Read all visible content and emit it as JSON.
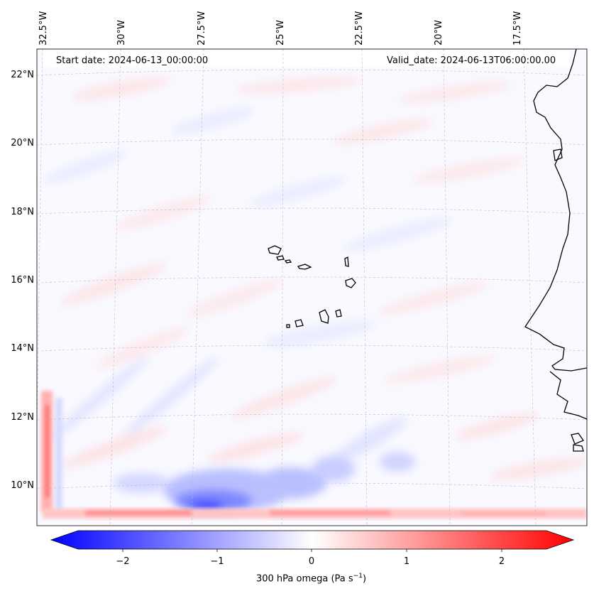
{
  "header": {
    "start_date": "Start date: 2024-06-13_00:00:00",
    "valid_date": "Valid_date: 2024-06-13T06:00:00.00"
  },
  "axes": {
    "lon_labels": [
      "32.5°W",
      "30°W",
      "27.5°W",
      "25°W",
      "22.5°W",
      "20°W",
      "17.5°W"
    ],
    "lat_labels": [
      "22°N",
      "20°N",
      "18°N",
      "16°N",
      "14°N",
      "12°N",
      "10°N"
    ]
  },
  "colorbar": {
    "ticks": [
      "−2",
      "−1",
      "0",
      "1",
      "2"
    ],
    "range": [
      -2.75,
      2.75
    ],
    "label_main": "300 hPa omega (Pa s",
    "label_exp": "−1",
    "label_end": ")",
    "colormap": "bwr",
    "min_color": "#0000ff",
    "mid_color": "#ffffff",
    "max_color": "#ff0000"
  },
  "map": {
    "projection": "Lambert conformal",
    "extent_lon": [
      -33,
      -15
    ],
    "extent_lat": [
      9,
      23
    ],
    "coastline_color": "#000000",
    "gridline_color": "#b0b0b0"
  }
}
